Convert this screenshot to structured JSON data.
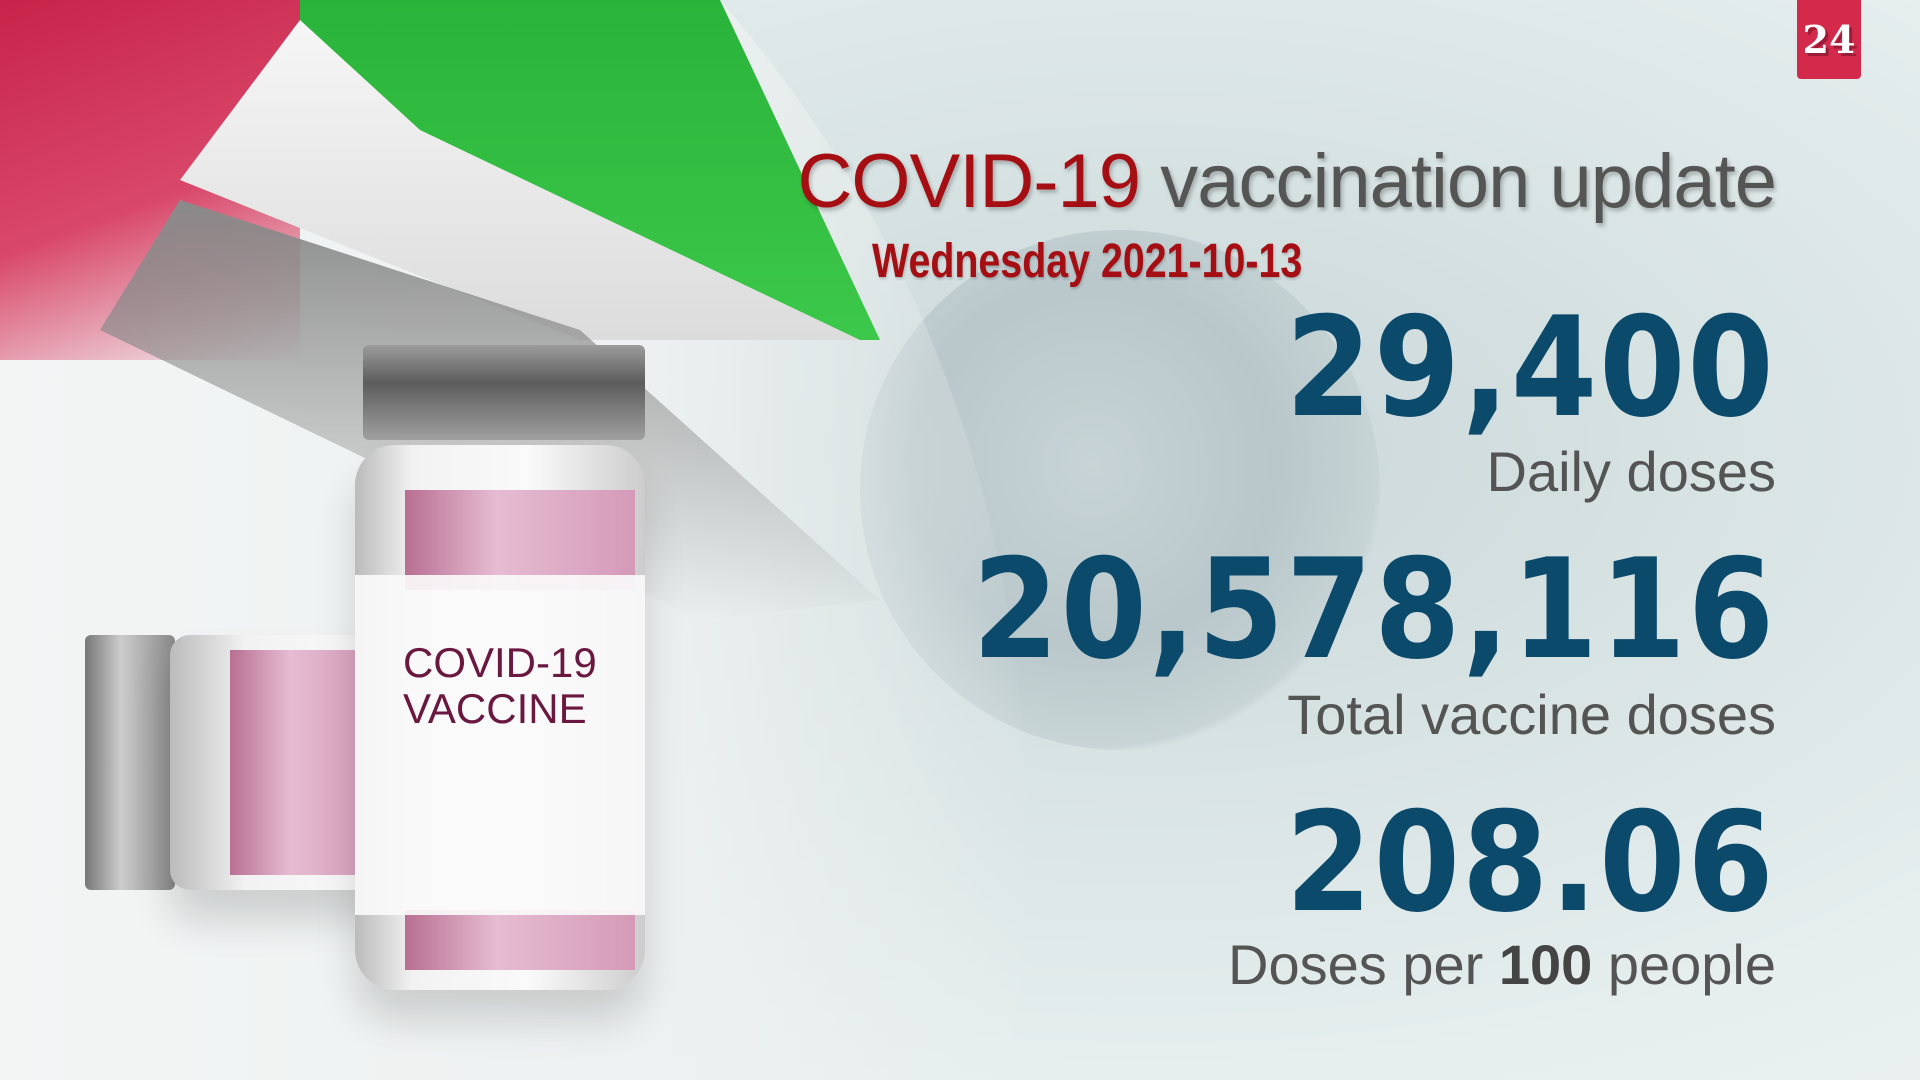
{
  "logo": {
    "text": "24",
    "color": "#d32a4c"
  },
  "header": {
    "title_highlight": "COVID-19",
    "title_rest": "vaccination update",
    "date": "Wednesday 2021-10-13"
  },
  "vial_label": {
    "line1": "COVID-19",
    "line2": "VACCINE"
  },
  "stats": [
    {
      "value": "29,400",
      "label": "Daily doses"
    },
    {
      "value": "20,578,116",
      "label": "Total vaccine doses"
    },
    {
      "value": "208.06",
      "label_pre": "Doses per",
      "label_num": "100",
      "label_post": "people"
    }
  ],
  "colors": {
    "accent": "#a50f14",
    "number": "#0c4a6c",
    "label": "#545454"
  }
}
